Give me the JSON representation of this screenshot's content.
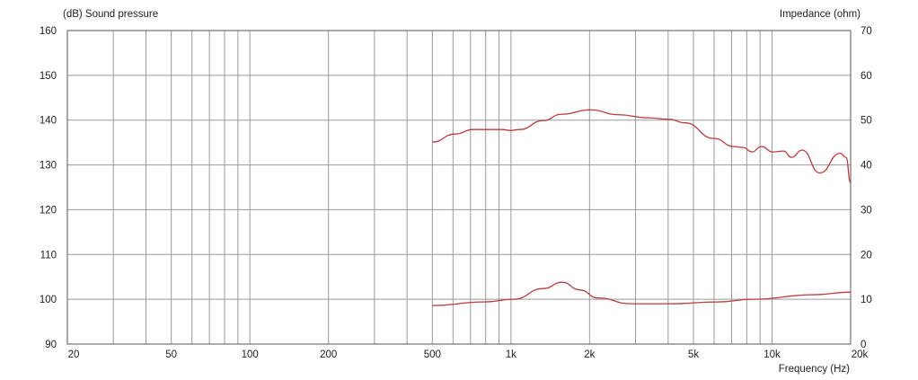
{
  "chart_data": {
    "type": "line",
    "left_axis_title": "(dB)  Sound pressure",
    "right_axis_title": "Impedance  (ohm)",
    "xlabel": "Frequency  (Hz)",
    "x_scale": "log",
    "xlim": [
      20,
      20000
    ],
    "ylim_left": [
      90,
      160
    ],
    "ylim_right": [
      0,
      70
    ],
    "grid": true,
    "x_tick_labels": [
      {
        "value": 20,
        "label": "20"
      },
      {
        "value": 50,
        "label": "50"
      },
      {
        "value": 100,
        "label": "100"
      },
      {
        "value": 200,
        "label": "200"
      },
      {
        "value": 500,
        "label": "500"
      },
      {
        "value": 1000,
        "label": "1k"
      },
      {
        "value": 2000,
        "label": "2k"
      },
      {
        "value": 5000,
        "label": "5k"
      },
      {
        "value": 10000,
        "label": "10k"
      },
      {
        "value": 20000,
        "label": "20k"
      }
    ],
    "y_left_ticks": [
      "160",
      "150",
      "140",
      "130",
      "120",
      "110",
      "100",
      "90"
    ],
    "y_right_ticks": [
      "70",
      "60",
      "50",
      "40",
      "30",
      "20",
      "10",
      "0"
    ],
    "line_color": "#c0393b",
    "grid_color": "#9a9a9a",
    "series": [
      {
        "axis": "left",
        "x": [
          500,
          611,
          716,
          922,
          998,
          1080,
          1329,
          1559,
          2010,
          2586,
          3363,
          4030,
          4630,
          6000,
          7140,
          7740,
          8390,
          9090,
          10080,
          11070,
          11870,
          13040,
          15240,
          18240,
          19200,
          20000
        ],
        "y": [
          135.1,
          136.9,
          137.9,
          137.9,
          137.7,
          137.9,
          139.9,
          141.3,
          142.3,
          141.2,
          140.5,
          140.2,
          139.4,
          135.9,
          134.1,
          133.9,
          132.9,
          134.1,
          132.9,
          133.1,
          131.7,
          133.3,
          128.2,
          132.6,
          131.7,
          126.0
        ]
      },
      {
        "axis": "right",
        "x": [
          500,
          787,
          1025,
          1329,
          1574,
          1833,
          2150,
          2880,
          4030,
          6180,
          8430,
          14370,
          20000
        ],
        "y": [
          8.6,
          9.4,
          10.0,
          12.4,
          13.8,
          12.1,
          10.3,
          9.0,
          9.0,
          9.4,
          10.0,
          11.0,
          11.6
        ]
      }
    ]
  }
}
